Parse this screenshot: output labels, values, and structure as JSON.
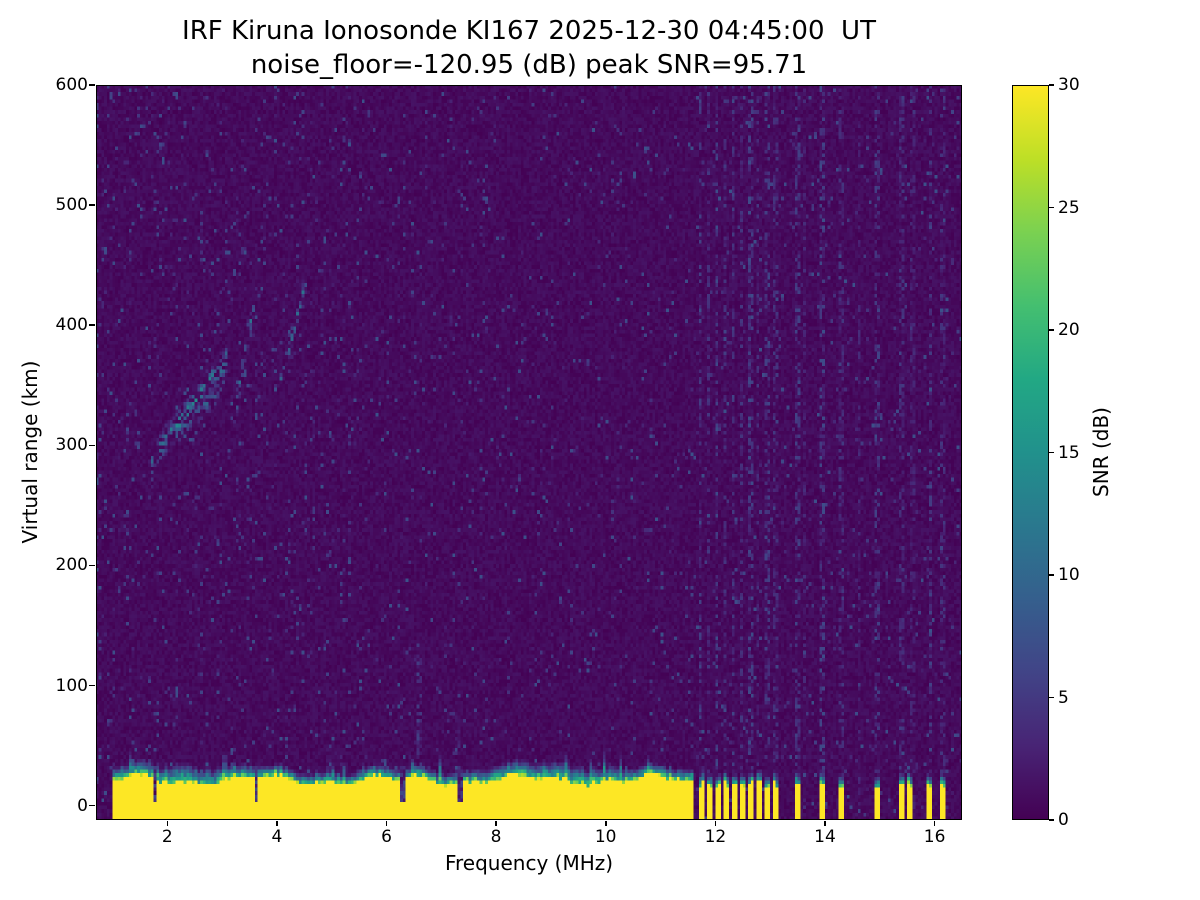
{
  "figure": {
    "title_line1": "IRF Kiruna Ionosonde KI167 2025-12-30 04:45:00  UT",
    "title_line2": "noise_floor=-120.95 (dB) peak SNR=95.71",
    "station": "IRF Kiruna Ionosonde KI167",
    "timestamp_ut": "2025-12-30 04:45:00",
    "noise_floor_db": -120.95,
    "peak_snr_db": 95.71,
    "xlabel": "Frequency (MHz)",
    "ylabel": "Virtual range (km)",
    "colorbar_label": "SNR (dB)"
  },
  "chart_data": {
    "type": "heatmap",
    "title": "IRF Kiruna Ionosonde KI167 2025-12-30 04:45:00  UT",
    "subtitle": "noise_floor=-120.95 (dB) peak SNR=95.71",
    "xlabel": "Frequency (MHz)",
    "ylabel": "Virtual range (km)",
    "x_range_mhz": [
      0.7,
      16.5
    ],
    "y_range_km": [
      -12,
      600
    ],
    "x_ticks": [
      2,
      4,
      6,
      8,
      10,
      12,
      14,
      16
    ],
    "y_ticks": [
      0,
      100,
      200,
      300,
      400,
      500,
      600
    ],
    "grid_on": false,
    "colorbar": {
      "label": "SNR (dB)",
      "min": 0,
      "max": 30,
      "ticks": [
        0,
        5,
        10,
        15,
        20,
        25,
        30
      ],
      "colormap": "viridis",
      "position": "right"
    },
    "colormap_stops": [
      "#440154",
      "#482475",
      "#414487",
      "#355f8d",
      "#2a788e",
      "#21918c",
      "#22a884",
      "#44bf70",
      "#7ad151",
      "#bddf26",
      "#fde725"
    ],
    "background_noise_db": {
      "typical": 1,
      "speckle_max": 8
    },
    "features": {
      "ground_clutter": {
        "description": "saturated yellow band of ~30 dB ground return from -12 km up to ~20-30 km, continuous from 1.0 to 11.6 MHz with teal transition above",
        "f_min": 1.02,
        "f_max_continuous": 11.62,
        "solid_top_km": 20,
        "transition_km": 10,
        "peak_value_db": 30
      },
      "echo_traces": [
        {
          "f0": 1.7,
          "f1": 3.1,
          "y0": 288,
          "y1": 372,
          "w_km": 9,
          "amp_db": 15,
          "density": 0.45
        },
        {
          "f0": 2.15,
          "f1": 2.95,
          "y0": 308,
          "y1": 344,
          "w_km": 7,
          "amp_db": 11,
          "density": 0.3
        },
        {
          "f0": 3.25,
          "f1": 3.62,
          "y0": 330,
          "y1": 428,
          "w_km": 8,
          "amp_db": 13,
          "density": 0.38
        },
        {
          "f0": 4.05,
          "f1": 4.55,
          "y0": 348,
          "y1": 442,
          "w_km": 8,
          "amp_db": 12,
          "density": 0.38
        }
      ],
      "interference_stripes": [
        {
          "f": 11.73,
          "amp": 6,
          "w": 0.04
        },
        {
          "f": 11.88,
          "amp": 5,
          "w": 0.03
        },
        {
          "f": 12.03,
          "amp": 7,
          "w": 0.04
        },
        {
          "f": 12.18,
          "amp": 5,
          "w": 0.03
        },
        {
          "f": 12.33,
          "amp": 6,
          "w": 0.04
        },
        {
          "f": 12.49,
          "amp": 5,
          "w": 0.03
        },
        {
          "f": 12.64,
          "amp": 7,
          "w": 0.04
        },
        {
          "f": 12.79,
          "amp": 5,
          "w": 0.03
        },
        {
          "f": 12.95,
          "amp": 6,
          "w": 0.04
        },
        {
          "f": 13.1,
          "amp": 5,
          "w": 0.03
        },
        {
          "f": 13.5,
          "amp": 6,
          "w": 0.04
        },
        {
          "f": 13.62,
          "amp": 4,
          "w": 0.03
        },
        {
          "f": 13.95,
          "amp": 7,
          "w": 0.04
        },
        {
          "f": 14.3,
          "amp": 5,
          "w": 0.04
        },
        {
          "f": 14.62,
          "amp": 4,
          "w": 0.03
        },
        {
          "f": 14.95,
          "amp": 6,
          "w": 0.04
        },
        {
          "f": 15.4,
          "amp": 5,
          "w": 0.04
        },
        {
          "f": 15.6,
          "amp": 4,
          "w": 0.03
        },
        {
          "f": 15.92,
          "amp": 6,
          "w": 0.04
        },
        {
          "f": 16.15,
          "amp": 5,
          "w": 0.04
        }
      ],
      "clutter_comb_freqs": [
        11.73,
        11.88,
        12.03,
        12.18,
        12.33,
        12.49,
        12.64,
        12.79,
        12.95,
        13.1,
        13.5,
        13.95,
        14.3,
        14.95,
        15.4,
        15.55,
        15.92,
        16.15
      ],
      "clutter_notches": [
        1.78,
        3.62,
        6.3,
        7.35
      ],
      "spikes": [
        {
          "f": 6.62,
          "top_km": 185,
          "amp_db": 8
        },
        {
          "f": 7.32,
          "top_km": 105,
          "amp_db": 6
        },
        {
          "f": 4.97,
          "top_km": 70,
          "amp_db": 5
        }
      ]
    },
    "grid": {
      "cols": 316,
      "rows": 204,
      "seed": 167
    }
  }
}
